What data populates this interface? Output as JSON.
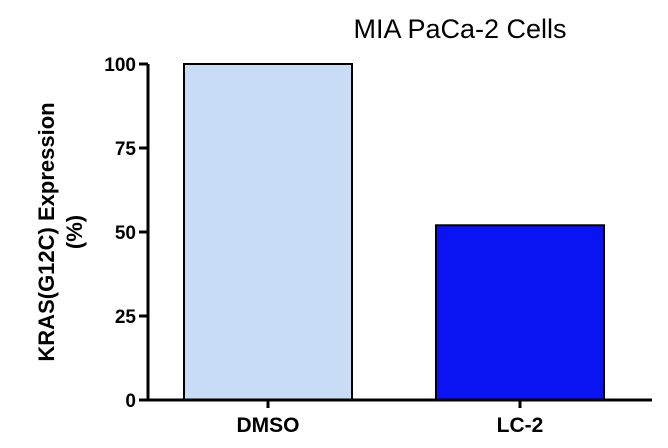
{
  "chart_data": {
    "type": "bar",
    "title": "MIA PaCa-2 Cells",
    "ylabel_line1": "KRAS(G12C) Expression",
    "ylabel_line2": "(%)",
    "xlabel": "",
    "categories": [
      "DMSO",
      "LC-2"
    ],
    "values": [
      100,
      52
    ],
    "colors": [
      "#c9dcf5",
      "#0a14f2"
    ],
    "ylim": [
      0,
      100
    ],
    "yticks": [
      0,
      25,
      50,
      75,
      100
    ],
    "grid": false,
    "legend": "none"
  }
}
